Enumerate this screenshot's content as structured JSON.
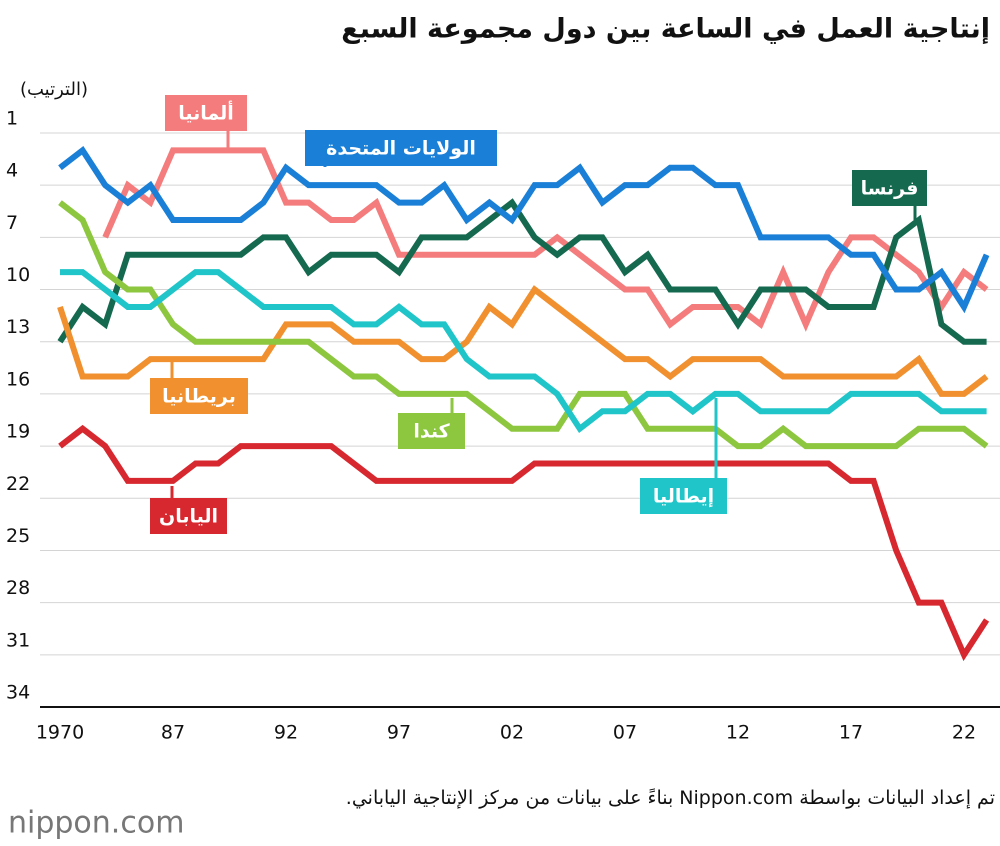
{
  "chart_data": {
    "type": "line",
    "title": "إنتاجية العمل في الساعة بين دول مجموعة السبع",
    "y_label": "(الترتيب)",
    "source": "تم إعداد البيانات بواسطة Nippon.com بناءً على بيانات من مركز الإنتاجية الياباني.",
    "logo": "nippon.com",
    "categories": [
      "1970",
      null,
      null,
      null,
      null,
      "87",
      null,
      null,
      null,
      null,
      "92",
      null,
      null,
      null,
      null,
      "97",
      null,
      null,
      null,
      null,
      "02",
      null,
      null,
      null,
      null,
      "07",
      null,
      null,
      null,
      null,
      "12",
      null,
      null,
      null,
      null,
      "17",
      null,
      null,
      null,
      null,
      "22",
      null
    ],
    "ylim": [
      1,
      34
    ],
    "y_inverted": true,
    "yticks": [
      1,
      4,
      7,
      10,
      13,
      16,
      19,
      22,
      25,
      28,
      31,
      34
    ],
    "grid": true,
    "series": [
      {
        "name": "ألمانيا",
        "color": "#f47c7c",
        "values": [
          null,
          null,
          7,
          4,
          5,
          2,
          2,
          2,
          2,
          2,
          5,
          5,
          6,
          6,
          5,
          8,
          8,
          8,
          8,
          8,
          8,
          8,
          7,
          8,
          9,
          10,
          10,
          12,
          11,
          11,
          11,
          12,
          9,
          12,
          9,
          7,
          7,
          8,
          9,
          11,
          9,
          10
        ]
      },
      {
        "name": "فرنسا",
        "color": "#14694f",
        "values": [
          13,
          11,
          12,
          8,
          8,
          8,
          8,
          8,
          8,
          7,
          7,
          9,
          8,
          8,
          8,
          9,
          7,
          7,
          7,
          6,
          5,
          7,
          8,
          7,
          7,
          9,
          8,
          10,
          10,
          10,
          12,
          10,
          10,
          10,
          11,
          11,
          11,
          7,
          6,
          12,
          13,
          13
        ]
      },
      {
        "name": "بريطانيا",
        "color": "#f0902e",
        "values": [
          11,
          15,
          15,
          15,
          14,
          14,
          14,
          14,
          14,
          14,
          12,
          12,
          12,
          13,
          13,
          13,
          14,
          14,
          13,
          11,
          12,
          10,
          11,
          12,
          13,
          14,
          14,
          15,
          14,
          14,
          14,
          14,
          15,
          15,
          15,
          15,
          15,
          15,
          14,
          16,
          16,
          15
        ]
      },
      {
        "name": "كندا",
        "color": "#8dc63f",
        "values": [
          5,
          6,
          9,
          10,
          10,
          12,
          13,
          13,
          13,
          13,
          13,
          13,
          14,
          15,
          15,
          16,
          16,
          16,
          16,
          17,
          18,
          18,
          18,
          16,
          16,
          16,
          18,
          18,
          18,
          18,
          19,
          19,
          18,
          19,
          19,
          19,
          19,
          19,
          18,
          18,
          18,
          19
        ]
      },
      {
        "name": "إيطاليا",
        "color": "#1fc5c8",
        "values": [
          9,
          9,
          10,
          11,
          11,
          10,
          9,
          9,
          10,
          11,
          11,
          11,
          11,
          12,
          12,
          11,
          12,
          12,
          14,
          15,
          15,
          15,
          16,
          18,
          17,
          17,
          16,
          16,
          17,
          16,
          16,
          17,
          17,
          17,
          17,
          16,
          16,
          16,
          16,
          17,
          17,
          17
        ]
      },
      {
        "name": "اليابان",
        "color": "#d7282f",
        "values": [
          19,
          18,
          19,
          21,
          21,
          21,
          20,
          20,
          19,
          19,
          19,
          19,
          19,
          20,
          21,
          21,
          21,
          21,
          21,
          21,
          21,
          20,
          20,
          20,
          20,
          20,
          20,
          20,
          20,
          20,
          20,
          20,
          20,
          20,
          20,
          21,
          21,
          25,
          28,
          28,
          31,
          29
        ]
      },
      {
        "name": "الولايات المتحدة",
        "color": "#1a7fd6",
        "values": [
          3,
          2,
          4,
          5,
          4,
          6,
          6,
          6,
          6,
          5,
          3,
          4,
          4,
          4,
          4,
          5,
          5,
          4,
          6,
          5,
          6,
          4,
          4,
          3,
          5,
          4,
          4,
          3,
          3,
          4,
          4,
          7,
          7,
          7,
          7,
          8,
          8,
          10,
          10,
          9,
          11,
          8
        ]
      }
    ]
  }
}
